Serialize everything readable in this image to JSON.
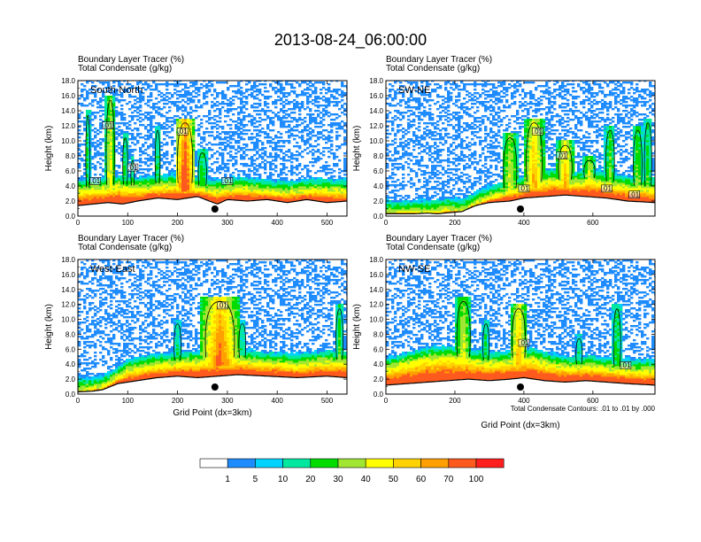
{
  "figure": {
    "title": "2013-08-24_06:00:00",
    "field_line1": "Boundary Layer Tracer   (%)",
    "field_line2": "Total Condensate   (g/kg)",
    "y_axis_label": "Height (km)",
    "x_axis_label": "Grid Point (dx=3km)",
    "contour_note": "Total Condensate Contours: .01 to .01 by .000",
    "contour_label": ".01"
  },
  "colors": {
    "levels": [
      "1",
      "5",
      "10",
      "20",
      "30",
      "40",
      "50",
      "60",
      "70",
      "100"
    ],
    "fills": [
      "#ffffff",
      "#1e8cff",
      "#00d2ff",
      "#00e8a0",
      "#00dc00",
      "#a0e632",
      "#ffff00",
      "#ffd200",
      "#ffa000",
      "#ff5a1e",
      "#ff1e1e"
    ]
  },
  "chart_data": [
    {
      "type": "heatmap",
      "title": "South-North",
      "ylabel": "Height (km)",
      "xlabel": "",
      "ylim": [
        0,
        18
      ],
      "xlim": [
        0,
        540
      ],
      "yticks": [
        "0.0",
        "2.0",
        "4.0",
        "6.0",
        "8.0",
        "10.0",
        "12.0",
        "14.0",
        "16.0",
        "18.0"
      ],
      "xticks": [
        "0",
        "100",
        "200",
        "300",
        "400",
        "500"
      ],
      "xtick_values": [
        0,
        100,
        200,
        300,
        400,
        500
      ],
      "marker_x": 275,
      "terrain": [
        [
          0,
          1.4
        ],
        [
          30,
          1.6
        ],
        [
          60,
          1.8
        ],
        [
          90,
          1.6
        ],
        [
          120,
          2.0
        ],
        [
          160,
          2.4
        ],
        [
          200,
          2.2
        ],
        [
          240,
          2.6
        ],
        [
          280,
          1.6
        ],
        [
          300,
          2.2
        ],
        [
          340,
          2.0
        ],
        [
          380,
          2.2
        ],
        [
          420,
          1.8
        ],
        [
          460,
          2.2
        ],
        [
          500,
          1.8
        ],
        [
          540,
          2.0
        ]
      ],
      "bl_top": [
        [
          0,
          3.2
        ],
        [
          40,
          3.4
        ],
        [
          80,
          3.8
        ],
        [
          120,
          3.5
        ],
        [
          160,
          3.8
        ],
        [
          200,
          4.0
        ],
        [
          240,
          3.6
        ],
        [
          280,
          3.2
        ],
        [
          320,
          3.6
        ],
        [
          360,
          3.4
        ],
        [
          400,
          3.0
        ],
        [
          440,
          3.2
        ],
        [
          480,
          3.4
        ],
        [
          540,
          3.2
        ]
      ],
      "plumes": [
        [
          20,
          4,
          14,
          12
        ],
        [
          65,
          10,
          16,
          20
        ],
        [
          95,
          5,
          11,
          12
        ],
        [
          110,
          3,
          8,
          10
        ],
        [
          160,
          5,
          12,
          12
        ],
        [
          215,
          20,
          13,
          35
        ],
        [
          250,
          10,
          9,
          12
        ],
        [
          530,
          6,
          4,
          8
        ]
      ],
      "contour_labels": [
        [
          60,
          12.0
        ],
        [
          210,
          11.2
        ],
        [
          110,
          6.4
        ],
        [
          35,
          4.6
        ],
        [
          300,
          4.6
        ]
      ]
    },
    {
      "type": "heatmap",
      "title": "SW-NE",
      "ylabel": "Height (km)",
      "xlabel": "",
      "ylim": [
        0,
        18
      ],
      "xlim": [
        0,
        780
      ],
      "yticks": [
        "0.0",
        "2.0",
        "4.0",
        "6.0",
        "8.0",
        "10.0",
        "12.0",
        "14.0",
        "16.0",
        "18.0"
      ],
      "xticks": [
        "0",
        "200",
        "400",
        "600"
      ],
      "xtick_values": [
        0,
        200,
        400,
        600
      ],
      "marker_x": 390,
      "terrain": [
        [
          0,
          0.3
        ],
        [
          80,
          0.3
        ],
        [
          120,
          0.4
        ],
        [
          150,
          0.3
        ],
        [
          170,
          0.4
        ],
        [
          220,
          0.6
        ],
        [
          260,
          1.4
        ],
        [
          300,
          1.8
        ],
        [
          360,
          2.0
        ],
        [
          400,
          2.4
        ],
        [
          460,
          2.6
        ],
        [
          520,
          2.8
        ],
        [
          580,
          2.6
        ],
        [
          640,
          2.4
        ],
        [
          700,
          2.0
        ],
        [
          780,
          1.8
        ]
      ],
      "bl_top": [
        [
          0,
          0.4
        ],
        [
          150,
          0.5
        ],
        [
          180,
          0.8
        ],
        [
          200,
          0.6
        ],
        [
          230,
          0.8
        ],
        [
          260,
          1.6
        ],
        [
          300,
          2.4
        ],
        [
          360,
          3.2
        ],
        [
          420,
          4.0
        ],
        [
          480,
          4.6
        ],
        [
          540,
          4.2
        ],
        [
          600,
          4.6
        ],
        [
          660,
          4.0
        ],
        [
          720,
          3.6
        ],
        [
          780,
          3.4
        ]
      ],
      "plumes": [
        [
          360,
          25,
          11,
          18
        ],
        [
          430,
          30,
          13,
          25
        ],
        [
          520,
          25,
          10,
          25
        ],
        [
          590,
          20,
          8,
          18
        ],
        [
          650,
          15,
          12,
          14
        ],
        [
          730,
          15,
          12,
          15
        ],
        [
          760,
          12,
          13,
          12
        ]
      ],
      "contour_labels": [
        [
          440,
          11.2
        ],
        [
          510,
          8.0
        ],
        [
          400,
          3.6
        ],
        [
          640,
          3.6
        ],
        [
          720,
          2.8
        ]
      ]
    },
    {
      "type": "heatmap",
      "title": "West-East",
      "ylabel": "Height (km)",
      "xlabel": "Grid Point (dx=3km)",
      "ylim": [
        0,
        18
      ],
      "xlim": [
        0,
        540
      ],
      "yticks": [
        "0.0",
        "2.0",
        "4.0",
        "6.0",
        "8.0",
        "10.0",
        "12.0",
        "14.0",
        "16.0",
        "18.0"
      ],
      "xticks": [
        "0",
        "100",
        "200",
        "300",
        "400",
        "500"
      ],
      "xtick_values": [
        0,
        100,
        200,
        300,
        400,
        500
      ],
      "marker_x": 275,
      "terrain": [
        [
          0,
          0.3
        ],
        [
          30,
          0.4
        ],
        [
          50,
          0.6
        ],
        [
          80,
          1.4
        ],
        [
          120,
          1.8
        ],
        [
          160,
          2.2
        ],
        [
          200,
          2.4
        ],
        [
          240,
          2.2
        ],
        [
          280,
          2.4
        ],
        [
          320,
          2.6
        ],
        [
          380,
          2.4
        ],
        [
          440,
          2.2
        ],
        [
          500,
          2.4
        ],
        [
          540,
          2.2
        ]
      ],
      "bl_top": [
        [
          0,
          0.5
        ],
        [
          40,
          0.7
        ],
        [
          60,
          1.2
        ],
        [
          100,
          3.0
        ],
        [
          140,
          3.6
        ],
        [
          200,
          4.0
        ],
        [
          240,
          4.2
        ],
        [
          280,
          4.4
        ],
        [
          320,
          4.4
        ],
        [
          380,
          4.0
        ],
        [
          440,
          3.8
        ],
        [
          500,
          4.2
        ],
        [
          540,
          4.0
        ]
      ],
      "plumes": [
        [
          285,
          40,
          13,
          30
        ],
        [
          200,
          8,
          10,
          8
        ],
        [
          525,
          8,
          12,
          12
        ],
        [
          330,
          8,
          10,
          8
        ]
      ],
      "contour_labels": [
        [
          290,
          11.8
        ]
      ]
    },
    {
      "type": "heatmap",
      "title": "NW-SE",
      "ylabel": "Height (km)",
      "xlabel": "Grid Point (dx=3km)",
      "ylim": [
        0,
        18
      ],
      "xlim": [
        0,
        780
      ],
      "yticks": [
        "0.0",
        "2.0",
        "4.0",
        "6.0",
        "8.0",
        "10.0",
        "12.0",
        "14.0",
        "16.0",
        "18.0"
      ],
      "xticks": [
        "0",
        "200",
        "400",
        "600"
      ],
      "xtick_values": [
        0,
        200,
        400,
        600
      ],
      "marker_x": 390,
      "terrain": [
        [
          0,
          1.2
        ],
        [
          60,
          1.4
        ],
        [
          120,
          1.6
        ],
        [
          180,
          1.8
        ],
        [
          240,
          2.0
        ],
        [
          300,
          1.8
        ],
        [
          360,
          2.0
        ],
        [
          400,
          2.2
        ],
        [
          460,
          1.8
        ],
        [
          520,
          1.6
        ],
        [
          580,
          1.8
        ],
        [
          640,
          1.6
        ],
        [
          700,
          1.4
        ],
        [
          780,
          1.2
        ]
      ],
      "bl_top": [
        [
          0,
          3.2
        ],
        [
          60,
          4.0
        ],
        [
          120,
          4.6
        ],
        [
          180,
          4.8
        ],
        [
          240,
          4.4
        ],
        [
          300,
          4.0
        ],
        [
          360,
          4.2
        ],
        [
          420,
          4.6
        ],
        [
          480,
          3.8
        ],
        [
          540,
          3.4
        ],
        [
          600,
          3.6
        ],
        [
          660,
          3.2
        ],
        [
          720,
          3.0
        ],
        [
          780,
          3.0
        ]
      ],
      "plumes": [
        [
          225,
          25,
          13,
          18
        ],
        [
          385,
          25,
          12,
          25
        ],
        [
          290,
          10,
          10,
          10
        ],
        [
          670,
          12,
          12,
          12
        ],
        [
          560,
          10,
          8,
          8
        ]
      ],
      "contour_labels": [
        [
          400,
          6.8
        ],
        [
          695,
          3.8
        ]
      ]
    }
  ]
}
